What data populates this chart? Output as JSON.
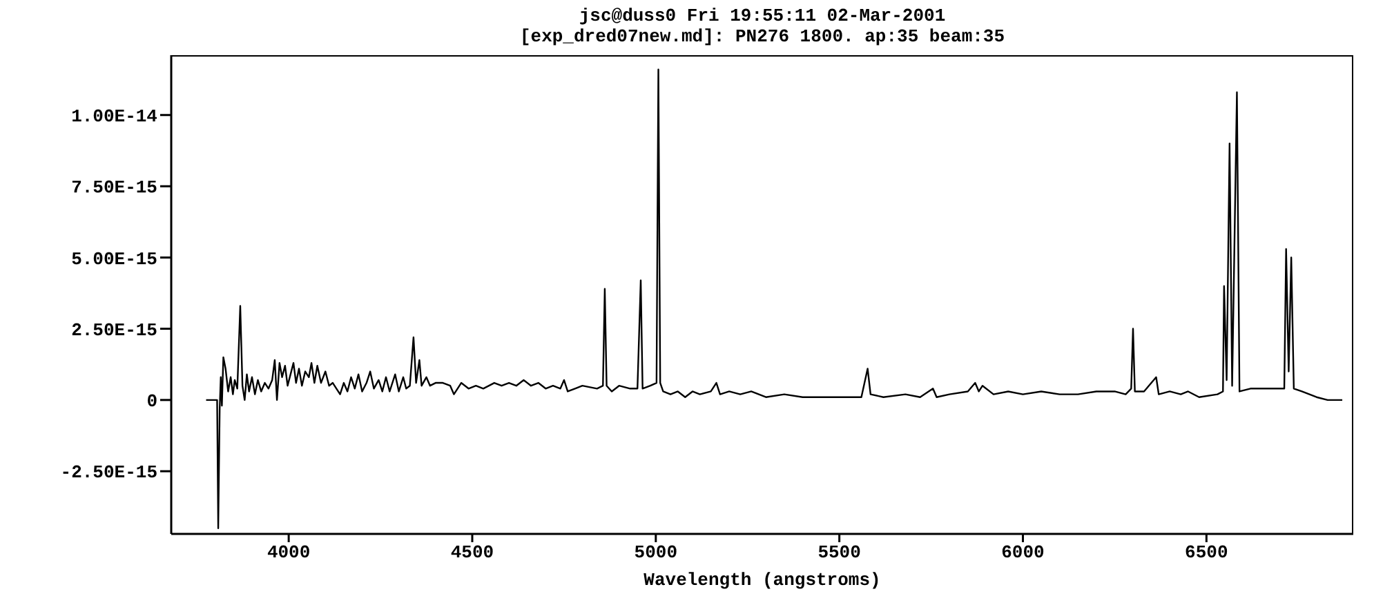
{
  "chart_data": {
    "type": "line",
    "title": "jsc@duss0 Fri 19:55:11 02-Mar-2001",
    "subtitle": "[exp_dred07new.md]: PN276 1800. ap:35 beam:35",
    "xlabel": "Wavelength (angstroms)",
    "xlim": [
      3680,
      6900
    ],
    "xticks": [
      4000,
      4500,
      5000,
      5500,
      6000,
      6500
    ],
    "ylim": [
      -4.7e-15,
      1.21e-14
    ],
    "yticks": [
      {
        "value": -2.5e-15,
        "label": "-2.50E-15"
      },
      0,
      {
        "value": 2.5e-15,
        "label": "2.50E-15"
      },
      {
        "value": 5e-15,
        "label": "5.00E-15"
      },
      {
        "value": 7.5e-15,
        "label": "7.50E-15"
      },
      {
        "value": 1e-14,
        "label": "1.00E-14"
      }
    ],
    "grid": false,
    "legend": false,
    "marker": "none",
    "line_style": "solid",
    "x": [
      3775,
      3805,
      3808,
      3812,
      3815,
      3818,
      3822,
      3828,
      3835,
      3842,
      3848,
      3853,
      3860,
      3868,
      3874,
      3880,
      3886,
      3892,
      3900,
      3908,
      3916,
      3925,
      3935,
      3945,
      3955,
      3962,
      3968,
      3975,
      3982,
      3990,
      3997,
      4005,
      4013,
      4020,
      4028,
      4036,
      4045,
      4055,
      4062,
      4070,
      4078,
      4088,
      4100,
      4110,
      4120,
      4130,
      4140,
      4150,
      4160,
      4170,
      4180,
      4190,
      4200,
      4212,
      4222,
      4232,
      4245,
      4255,
      4265,
      4275,
      4290,
      4300,
      4312,
      4320,
      4330,
      4340,
      4347,
      4356,
      4362,
      4375,
      4385,
      4400,
      4420,
      4440,
      4450,
      4470,
      4490,
      4510,
      4530,
      4560,
      4580,
      4600,
      4620,
      4640,
      4660,
      4680,
      4700,
      4720,
      4740,
      4750,
      4760,
      4780,
      4800,
      4840,
      4856,
      4861,
      4866,
      4880,
      4900,
      4930,
      4950,
      4959,
      4964,
      4985,
      5002,
      5007,
      5012,
      5020,
      5040,
      5060,
      5080,
      5100,
      5120,
      5150,
      5165,
      5175,
      5200,
      5230,
      5260,
      5300,
      5350,
      5400,
      5450,
      5500,
      5560,
      5577,
      5585,
      5620,
      5680,
      5720,
      5755,
      5765,
      5800,
      5850,
      5870,
      5880,
      5890,
      5920,
      5960,
      6000,
      6050,
      6100,
      6150,
      6200,
      6250,
      6280,
      6295,
      6300,
      6305,
      6330,
      6363,
      6370,
      6400,
      6430,
      6450,
      6480,
      6530,
      6545,
      6548,
      6555,
      6563,
      6570,
      6583,
      6590,
      6620,
      6650,
      6690,
      6712,
      6717,
      6724,
      6731,
      6738,
      6760,
      6800,
      6830,
      6870
    ],
    "series": [
      {
        "color": "#000000",
        "values": [
          0,
          0,
          -4.5e-15,
          -3e-16,
          8e-16,
          -2e-16,
          1.5e-15,
          1.1e-15,
          3e-16,
          8e-16,
          2e-16,
          7e-16,
          4e-16,
          3.3e-15,
          5e-16,
          0,
          9e-16,
          3e-16,
          8e-16,
          2e-16,
          7e-16,
          3e-16,
          6e-16,
          4e-16,
          7e-16,
          1.4e-15,
          0,
          1.3e-15,
          8e-16,
          1.2e-15,
          5e-16,
          9e-16,
          1.3e-15,
          6e-16,
          1.1e-15,
          5e-16,
          1e-15,
          8e-16,
          1.3e-15,
          6e-16,
          1.2e-15,
          6e-16,
          1e-15,
          5e-16,
          6e-16,
          4e-16,
          2e-16,
          6e-16,
          3e-16,
          8e-16,
          4e-16,
          9e-16,
          3e-16,
          6e-16,
          1e-15,
          4e-16,
          7e-16,
          3e-16,
          8e-16,
          3e-16,
          9e-16,
          3e-16,
          8e-16,
          4e-16,
          5e-16,
          2.2e-15,
          6e-16,
          1.4e-15,
          5e-16,
          8e-16,
          5e-16,
          6e-16,
          6e-16,
          5e-16,
          2e-16,
          6e-16,
          4e-16,
          5e-16,
          4e-16,
          6e-16,
          5e-16,
          6e-16,
          5e-16,
          7e-16,
          5e-16,
          6e-16,
          4e-16,
          5e-16,
          4e-16,
          7e-16,
          3e-16,
          4e-16,
          5e-16,
          4e-16,
          5e-16,
          3.9e-15,
          5e-16,
          3e-16,
          5e-16,
          4e-16,
          4e-16,
          4.2e-15,
          4e-16,
          5e-16,
          6e-16,
          1.16e-14,
          6e-16,
          3e-16,
          2e-16,
          3e-16,
          1e-16,
          3e-16,
          2e-16,
          3e-16,
          6e-16,
          2e-16,
          3e-16,
          2e-16,
          3e-16,
          1e-16,
          2e-16,
          1e-16,
          1e-16,
          1e-16,
          1e-16,
          1.1e-15,
          2e-16,
          1e-16,
          2e-16,
          1e-16,
          4e-16,
          1e-16,
          2e-16,
          3e-16,
          6e-16,
          3e-16,
          5e-16,
          2e-16,
          3e-16,
          2e-16,
          3e-16,
          2e-16,
          2e-16,
          3e-16,
          3e-16,
          2e-16,
          4e-16,
          2.5e-15,
          3e-16,
          3e-16,
          8e-16,
          2e-16,
          3e-16,
          2e-16,
          3e-16,
          1e-16,
          2e-16,
          3e-16,
          4e-15,
          7e-16,
          9e-15,
          5e-16,
          1.08e-14,
          3e-16,
          4e-16,
          4e-16,
          4e-16,
          4e-16,
          5.3e-15,
          1e-15,
          5e-15,
          4e-16,
          3e-16,
          1e-16,
          0,
          0
        ]
      }
    ]
  }
}
